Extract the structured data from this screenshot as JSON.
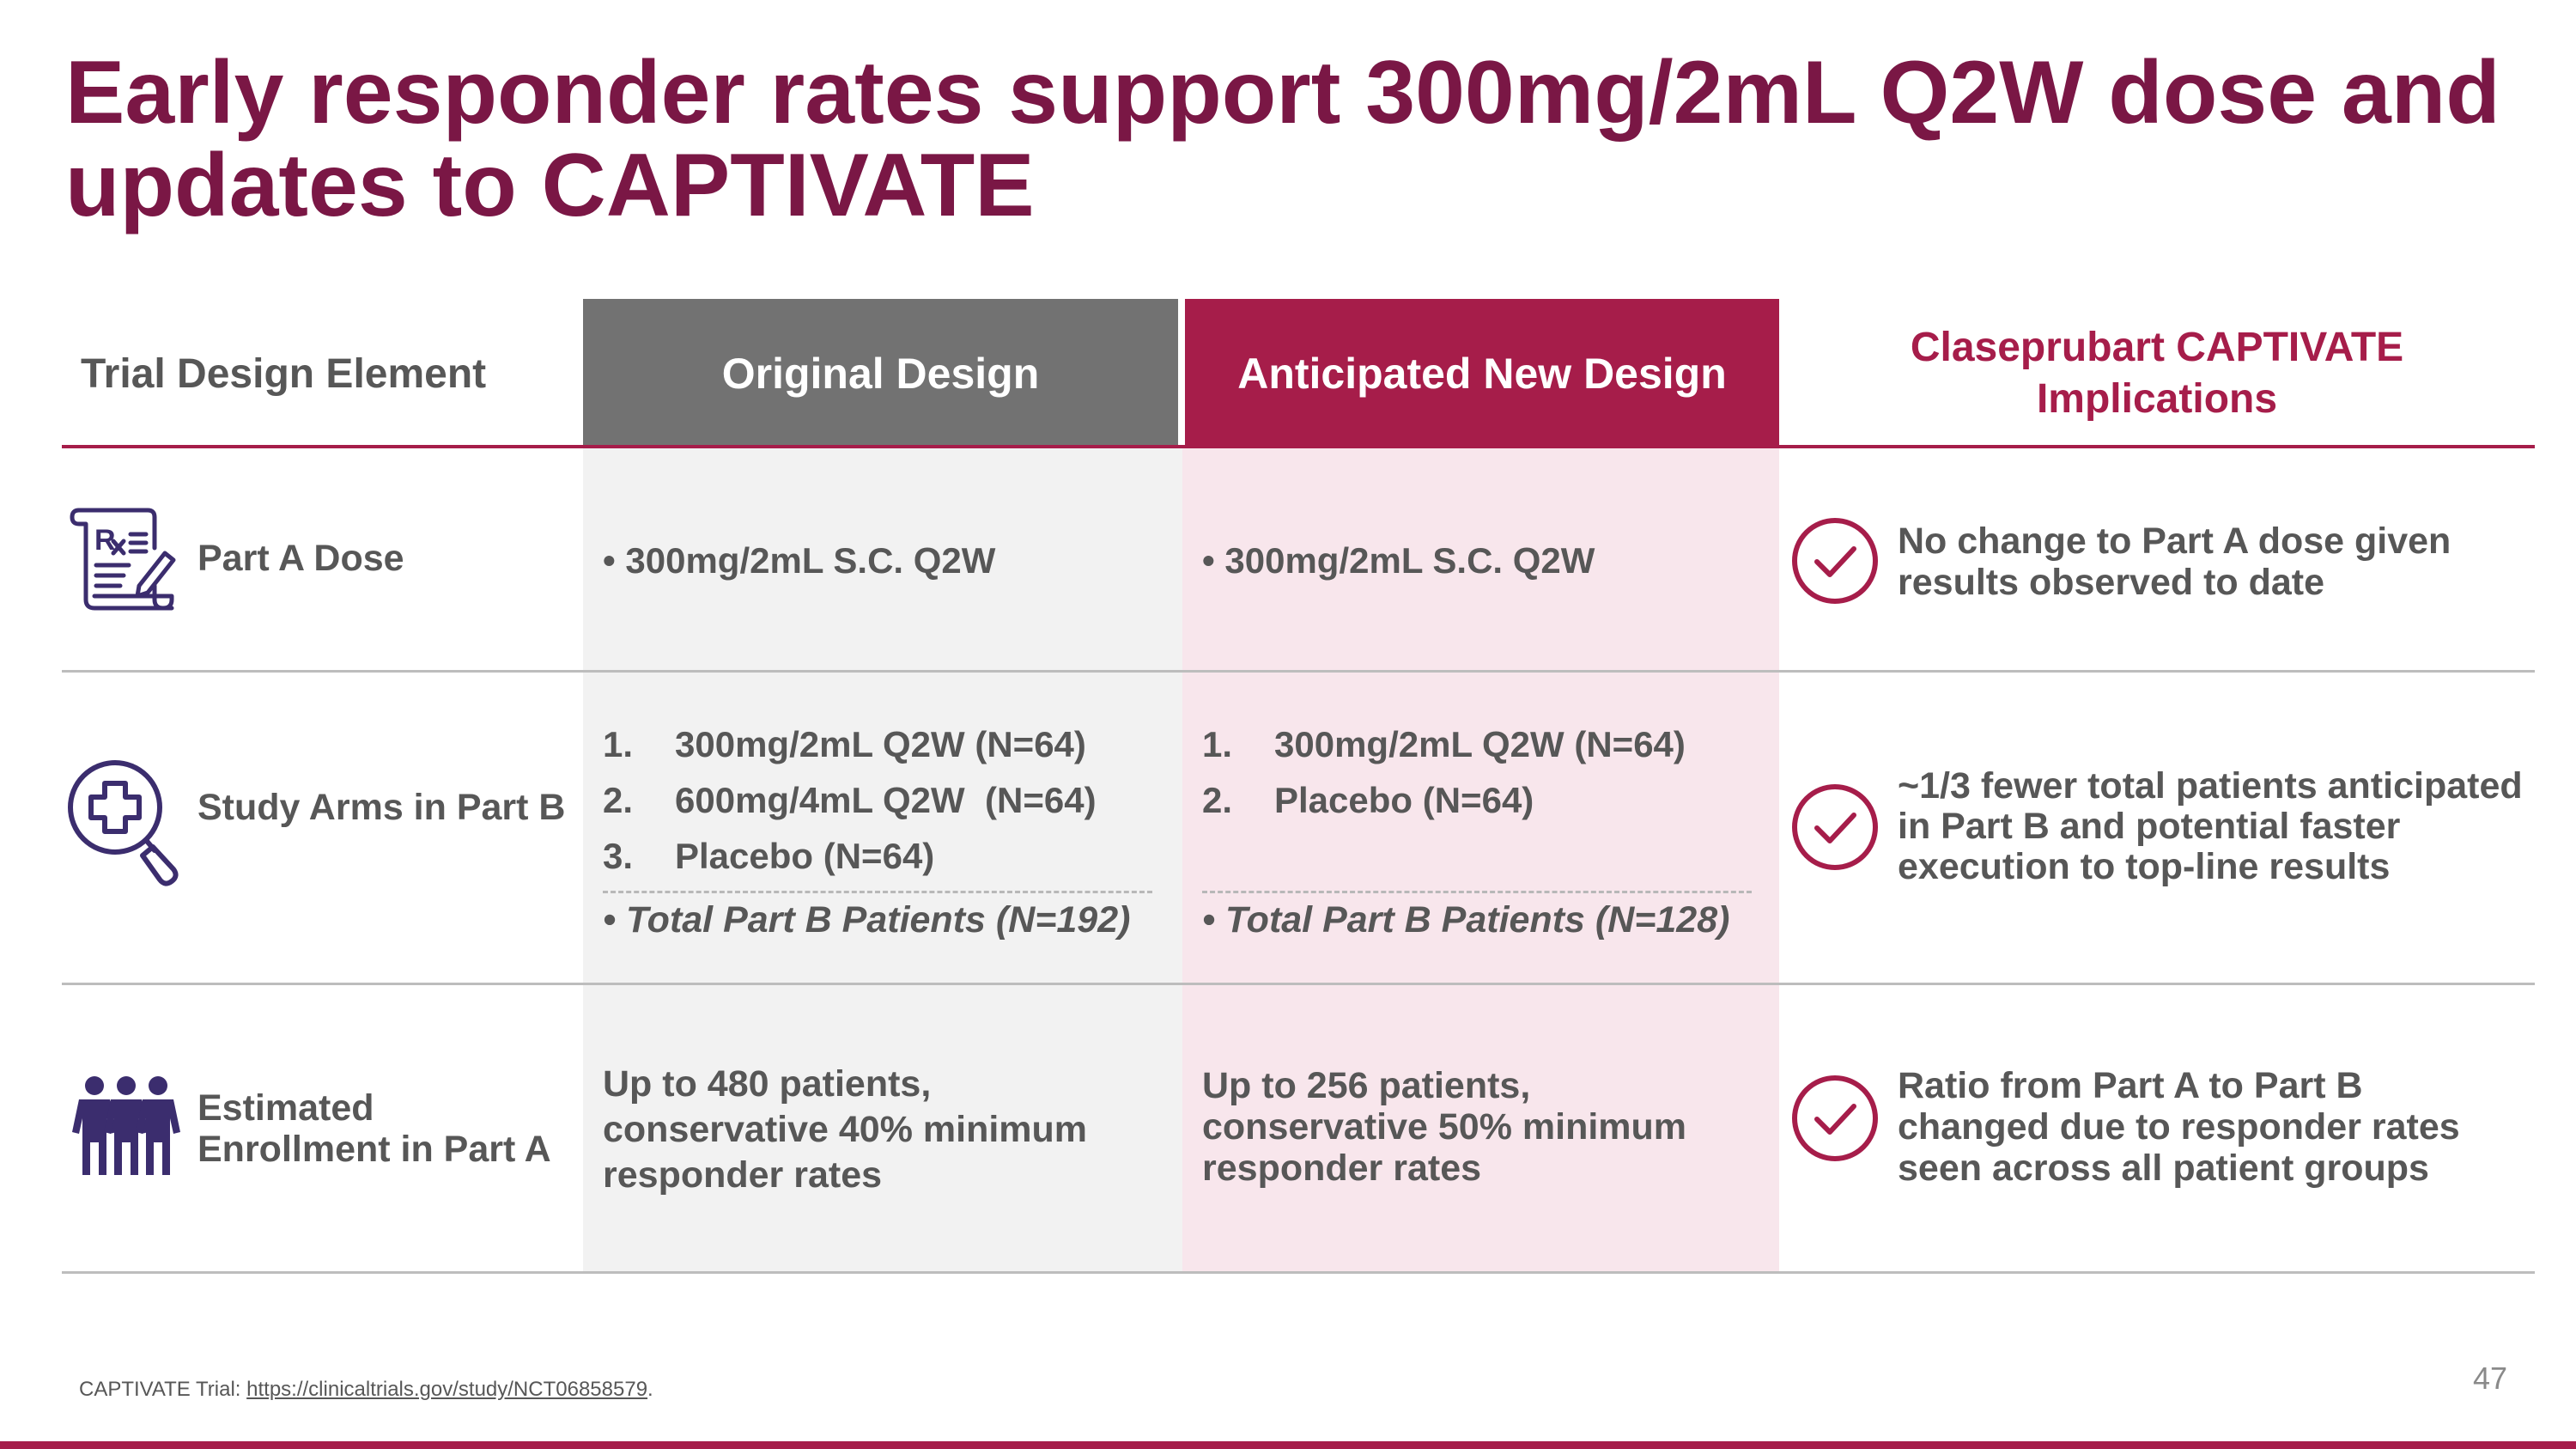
{
  "slide": {
    "title": "Early responder rates support 300mg/2mL Q2W dose and updates to CAPTIVATE",
    "page_number": "47",
    "colors": {
      "title": "#7a1745",
      "accent": "#a61d4a",
      "original_header": "#727272",
      "text": "#575757"
    }
  },
  "table": {
    "headers": {
      "element": "Trial Design Element",
      "original": "Original Design",
      "new": "Anticipated New Design",
      "implications": "Claseprubart CAPTIVATE Implications"
    },
    "rows": [
      {
        "label": "Part A Dose",
        "icon": "prescription-icon",
        "original": "• 300mg/2mL S.C. Q2W",
        "new": "• 300mg/2mL S.C. Q2W",
        "implication": "No change to Part A dose given results observed to date",
        "implication_icon": "checkmark-circle-icon"
      },
      {
        "label": "Study Arms in Part B",
        "icon": "medical-search-icon",
        "original_list": [
          {
            "num": "1.",
            "text": "300mg/2mL Q2W (N=64)"
          },
          {
            "num": "2.",
            "text": "600mg/4mL Q2W  (N=64)"
          },
          {
            "num": "3.",
            "text": "Placebo (N=64)"
          }
        ],
        "original_total": "• Total Part B Patients (N=192)",
        "new_list": [
          {
            "num": "1.",
            "text": "300mg/2mL Q2W (N=64)"
          },
          {
            "num": "2.",
            "text": "Placebo (N=64)"
          }
        ],
        "new_total": "• Total Part B Patients (N=128)",
        "implication": "~1/3 fewer total patients anticipated in Part B and potential faster execution to top-line results",
        "implication_icon": "checkmark-circle-icon"
      },
      {
        "label": "Estimated Enrollment in Part A",
        "icon": "people-group-icon",
        "original": "Up to 480 patients, conservative 40% minimum responder rates",
        "new": "Up to 256 patients, conservative 50% minimum responder rates",
        "implication": "Ratio from Part A to Part B changed due to responder rates seen across all patient groups",
        "implication_icon": "checkmark-circle-icon"
      }
    ]
  },
  "footnote": {
    "prefix": "CAPTIVATE Trial: ",
    "link": "https://clinicaltrials.gov/study/NCT06858579",
    "suffix": "."
  }
}
